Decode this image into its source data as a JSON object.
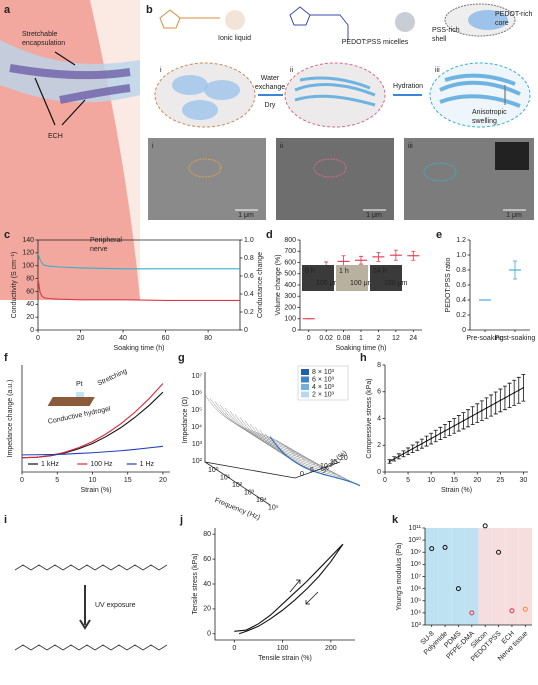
{
  "figure": {
    "panel_labels": [
      "a",
      "b",
      "c",
      "d",
      "e",
      "f",
      "g",
      "h",
      "i",
      "j",
      "k"
    ],
    "a": {
      "encapsulation": [
        "Stretchable",
        "encapsulation"
      ],
      "ech": "ECH",
      "nerve": [
        "Peripheral",
        "nerve"
      ]
    },
    "b": {
      "ionic_liquid": "Ionic liquid",
      "micelles": "PEDOT:PSS micelles",
      "shell": [
        "PSS-rich",
        "shell"
      ],
      "core": [
        "PEDOT-rich",
        "core"
      ],
      "steps": [
        "i",
        "ii",
        "iii"
      ],
      "step1": [
        "Water",
        "exchange"
      ],
      "step1b": "Dry",
      "step2": "Hydration",
      "swelling": [
        "Anisotropic",
        "swelling"
      ],
      "sem_labels": [
        "i",
        "ii",
        "iii"
      ],
      "scale": "1 μm"
    },
    "g": {
      "y_label": "Impedance (Ω)",
      "x_label": "Frequency (Hz)",
      "z_label": "Strain (%)",
      "y_ticks": [
        "10⁷",
        "10⁶",
        "10⁵",
        "10⁴",
        "10³",
        "10²"
      ],
      "x_ticks": [
        "10⁰",
        "10¹",
        "10²",
        "10³",
        "10⁴",
        "10⁵"
      ],
      "z_ticks": [
        "0",
        "5",
        "10",
        "15",
        "20"
      ],
      "legend": [
        "8 × 10³",
        "6 × 10³",
        "4 × 10³",
        "2 × 10³"
      ],
      "legend_colors": [
        "#1f5fa8",
        "#3c86c8",
        "#74b0de",
        "#b8d8f0"
      ]
    },
    "i": {
      "uv": "UV exposure"
    }
  },
  "chart_data": [
    {
      "type": "line",
      "x_label": "Soaking time (h)",
      "y_label": "Conductivity (S cm⁻¹)",
      "y2_label": "Conductance change",
      "x": [
        0,
        1,
        2,
        3,
        5,
        10,
        20,
        40,
        60,
        80,
        95
      ],
      "series": [
        {
          "name": "Conductivity",
          "color": "#e0364a",
          "values": [
            80,
            58,
            52,
            50,
            49,
            48,
            47,
            47,
            46,
            46,
            46
          ]
        },
        {
          "name": "Conductance change",
          "color": "#33b2cc",
          "axis": "y2",
          "values": [
            0.85,
            0.78,
            0.74,
            0.72,
            0.71,
            0.7,
            0.69,
            0.68,
            0.68,
            0.68,
            0.68
          ]
        }
      ],
      "xlim": [
        0,
        95
      ],
      "xticks": [
        0,
        20,
        40,
        60,
        80
      ],
      "ylim": [
        0,
        140
      ],
      "yticks": [
        0,
        20,
        40,
        60,
        80,
        100,
        120,
        140
      ],
      "y2lim": [
        0,
        1
      ],
      "y2ticks": [
        0,
        0.2,
        0.4,
        0.6,
        0.8,
        {
          "value": 1,
          "label": "1.0"
        }
      ]
    },
    {
      "type": "dot",
      "style": "mean",
      "x_label": "Soaking time (h)",
      "y_label": "Volume change (%)",
      "color": "#e0364a",
      "categories": [
        "0",
        "0.02",
        "0.08",
        "1",
        "2",
        "12",
        "24"
      ],
      "values": [
        100,
        565,
        610,
        620,
        650,
        665,
        660
      ],
      "errors": [
        0,
        40,
        50,
        35,
        40,
        45,
        40
      ],
      "ylim": [
        0,
        800
      ],
      "yticks": [
        0,
        100,
        200,
        300,
        400,
        500,
        600,
        700,
        800
      ],
      "annotations": [
        "0 h",
        "1 h",
        "24 h",
        "100 μm",
        "100 μm",
        "100 μm"
      ]
    },
    {
      "type": "dot",
      "style": "mean",
      "y_label": "PEDOT:PSS ratio",
      "color": "#3aa8d8",
      "categories": [
        "Pre-soaking",
        "Post-soaking"
      ],
      "values": [
        0.4,
        0.8
      ],
      "errors": [
        0,
        0.12
      ],
      "ylim": [
        0,
        1.2
      ],
      "yticks": [
        0,
        0.2,
        0.4,
        0.6,
        0.8,
        {
          "value": 1,
          "label": "1.0"
        },
        1.2
      ]
    },
    {
      "type": "line",
      "x_label": "Strain (%)",
      "y_label": "Impedance change (a.u.)",
      "x": [
        0,
        2,
        4,
        6,
        8,
        10,
        12,
        14,
        16,
        18,
        20
      ],
      "series": [
        {
          "name": "1 kHz",
          "color": "#111111",
          "values": [
            1.0,
            1.03,
            1.13,
            1.33,
            1.62,
            2.0,
            2.5,
            3.1,
            3.82,
            4.65,
            5.6
          ]
        },
        {
          "name": "100 Hz",
          "color": "#d8283a",
          "values": [
            1.0,
            1.03,
            1.15,
            1.37,
            1.7,
            2.13,
            2.69,
            3.37,
            4.18,
            5.12,
            6.2
          ]
        },
        {
          "name": "1 Hz",
          "color": "#1f3fbf",
          "values": [
            1.2,
            1.21,
            1.22,
            1.25,
            1.3,
            1.35,
            1.42,
            1.49,
            1.58,
            1.69,
            1.8
          ]
        }
      ],
      "xlim": [
        0,
        21
      ],
      "xticks": [
        0,
        5,
        10,
        15,
        20
      ],
      "ylim": [
        0,
        7.5
      ],
      "legend": "bottom",
      "annotations": [
        "Pt",
        "Stretching",
        "Conductive hydrogel"
      ]
    },
    {
      "type": "dot",
      "connect": true,
      "x_label": "Strain (%)",
      "y_label": "Compressive stress (kPa)",
      "color": "#111111",
      "x": [
        1,
        2,
        3,
        4,
        5,
        6,
        7,
        8,
        9,
        10,
        11,
        12,
        13,
        14,
        15,
        16,
        17,
        18,
        19,
        20,
        21,
        22,
        23,
        24,
        25,
        26,
        27,
        28,
        29,
        30
      ],
      "values": [
        0.79,
        0.98,
        1.17,
        1.36,
        1.55,
        1.74,
        1.93,
        2.12,
        2.31,
        2.5,
        2.69,
        2.88,
        3.07,
        3.26,
        3.45,
        3.64,
        3.83,
        4.02,
        4.21,
        4.4,
        4.59,
        4.78,
        4.97,
        5.16,
        5.35,
        5.54,
        5.73,
        5.92,
        6.11,
        6.3
      ],
      "errors": [
        0.13,
        0.16,
        0.19,
        0.22,
        0.25,
        0.28,
        0.31,
        0.34,
        0.37,
        0.4,
        0.43,
        0.46,
        0.49,
        0.52,
        0.55,
        0.58,
        0.61,
        0.64,
        0.67,
        0.7,
        0.73,
        0.76,
        0.79,
        0.82,
        0.85,
        0.88,
        0.91,
        0.94,
        0.97,
        1.0
      ],
      "xlim": [
        0,
        31
      ],
      "xticks": [
        0,
        5,
        10,
        15,
        20,
        25,
        30
      ],
      "ylim": [
        0,
        8
      ],
      "yticks": [
        0,
        2,
        4,
        6,
        8
      ]
    },
    {
      "type": "line",
      "x_label": "Tensile strain (%)",
      "y_label": "Tensile stress (kPa)",
      "series": [
        {
          "name": "Loading",
          "color": "#111111",
          "x": [
            0,
            25,
            50,
            75,
            100,
            125,
            150,
            175,
            200,
            225
          ],
          "values": [
            2,
            3,
            8,
            15,
            24,
            33,
            42,
            52,
            62,
            72
          ]
        },
        {
          "name": "Unloading",
          "color": "#111111",
          "x": [
            225,
            200,
            175,
            150,
            125,
            100,
            75,
            50,
            25,
            10
          ],
          "values": [
            72,
            58,
            46,
            36,
            27,
            19,
            12,
            6,
            2,
            0
          ]
        }
      ],
      "xlim": [
        -40,
        250
      ],
      "xticks": [
        0,
        100,
        200
      ],
      "ylim": [
        -5,
        85
      ],
      "yticks": [
        0,
        20,
        40,
        60,
        80
      ]
    },
    {
      "type": "dot",
      "log": true,
      "y_label": "Young's modulus (Pa)",
      "categories": [
        "SU-8",
        "Polyimide",
        "PDMS",
        "PFPE-DMA",
        "Silicon",
        "PEDOT:PSS",
        "ECH",
        "Nerve tissue"
      ],
      "values": [
        2000000000,
        2500000000,
        1000000,
        10000,
        150000000000,
        1000000000,
        15000,
        20000
      ],
      "point_colors": [
        "#111111",
        "#111111",
        "#111111",
        "#e0364a",
        "#111111",
        "#111111",
        "#e0364a",
        "#f08a2a"
      ],
      "band_colors": [
        "#bfe2f2",
        "#bfe2f2",
        "#bfe2f2",
        "#bfe2f2",
        "#f7dede",
        "#f7dede",
        "#f7dede",
        "#f7dede"
      ],
      "ylim": [
        1000,
        100000000000
      ],
      "yticks": [
        {
          "value": 1000,
          "label": "10³"
        },
        {
          "value": 10000,
          "label": "10⁴"
        },
        {
          "value": 100000,
          "label": "10⁵"
        },
        {
          "value": 1000000,
          "label": "10⁶"
        },
        {
          "value": 10000000,
          "label": "10⁷"
        },
        {
          "value": 100000000,
          "label": "10⁸"
        },
        {
          "value": 1000000000,
          "label": "10⁹"
        },
        {
          "value": 10000000000,
          "label": "10¹⁰"
        },
        {
          "value": 100000000000,
          "label": "10¹¹"
        }
      ]
    }
  ]
}
